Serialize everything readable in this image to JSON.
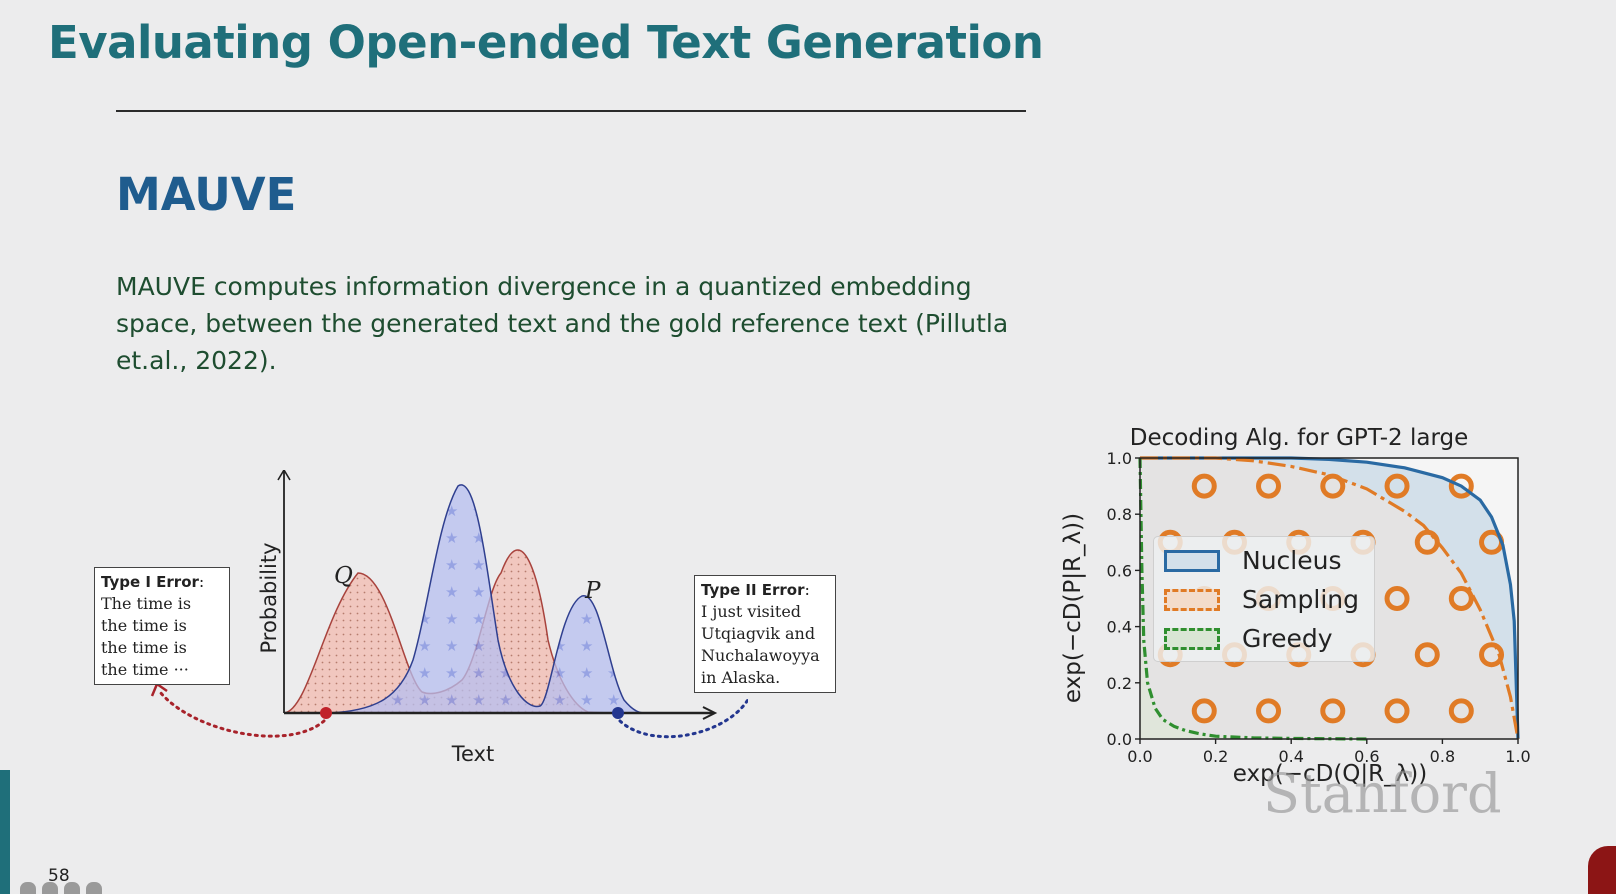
{
  "slide": {
    "title": "Evaluating Open-ended Text Generation",
    "heading": "MAUVE",
    "body": "MAUVE computes information divergence in a quantized embedding space, between the generated text and the gold reference text (Pillutla et.al., 2022).",
    "page_number": "58",
    "watermark": "Stanford"
  },
  "distribution_figure": {
    "y_axis_label": "Probability",
    "x_axis_label": "Text",
    "q_label": "Q",
    "p_label": "P",
    "type_one_error": {
      "heading": "Type I Error",
      "lines": [
        "The time is",
        "the time is",
        "the time is",
        "the time ···"
      ]
    },
    "type_two_error": {
      "heading": "Type II Error",
      "lines": [
        "I just visited",
        "Utqiagvik and",
        "Nuchalawoyya",
        "in Alaska."
      ]
    }
  },
  "chart_data": {
    "type": "line",
    "title": "Decoding Alg. for GPT-2 large",
    "xlabel": "exp(−cD(Q|R_λ))",
    "ylabel": "exp(−cD(P|R_λ))",
    "xlim": [
      0.0,
      1.0
    ],
    "ylim": [
      0.0,
      1.0
    ],
    "x_ticks": [
      "0.0",
      "0.2",
      "0.4",
      "0.6",
      "0.8",
      "1.0"
    ],
    "y_ticks": [
      "0.0",
      "0.2",
      "0.4",
      "0.6",
      "0.8",
      "1.0"
    ],
    "legend_position": "center-left",
    "series": [
      {
        "name": "Nucleus",
        "color": "#2a6aa3",
        "x": [
          0.0,
          0.1,
          0.2,
          0.3,
          0.4,
          0.5,
          0.6,
          0.7,
          0.8,
          0.85,
          0.9,
          0.93,
          0.96,
          0.98,
          0.99,
          1.0
        ],
        "y": [
          1.0,
          1.0,
          1.0,
          1.0,
          1.0,
          0.995,
          0.985,
          0.965,
          0.93,
          0.9,
          0.85,
          0.79,
          0.69,
          0.55,
          0.42,
          0.0
        ]
      },
      {
        "name": "Sampling",
        "color": "#e07b26",
        "x": [
          0.0,
          0.1,
          0.2,
          0.3,
          0.4,
          0.5,
          0.6,
          0.7,
          0.75,
          0.8,
          0.85,
          0.9,
          0.95,
          0.98,
          1.0
        ],
        "y": [
          1.0,
          1.0,
          1.0,
          0.99,
          0.97,
          0.94,
          0.89,
          0.81,
          0.76,
          0.68,
          0.59,
          0.46,
          0.3,
          0.15,
          0.0
        ]
      },
      {
        "name": "Greedy",
        "color": "#2f8f2f",
        "x": [
          0.0,
          0.005,
          0.01,
          0.02,
          0.04,
          0.06,
          0.09,
          0.12,
          0.16,
          0.2,
          0.3,
          0.4,
          0.5,
          0.6
        ],
        "y": [
          1.0,
          0.6,
          0.35,
          0.2,
          0.11,
          0.07,
          0.045,
          0.03,
          0.018,
          0.01,
          0.004,
          0.002,
          0.001,
          0.0
        ]
      }
    ]
  }
}
